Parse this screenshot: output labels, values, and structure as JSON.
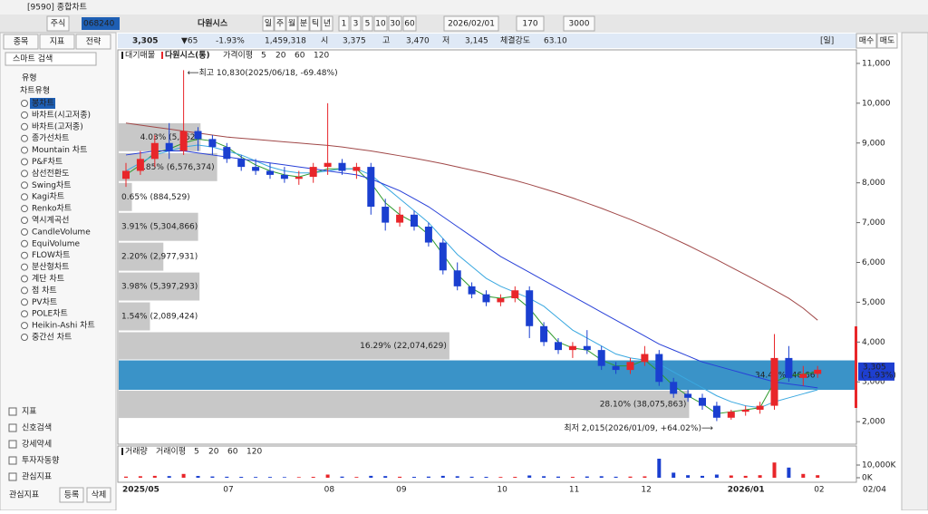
{
  "window": {
    "title": "[9590] 종합차트"
  },
  "toolbar": {
    "market": "주식",
    "code": "068240",
    "name": "다원시스",
    "periods": [
      "일",
      "주",
      "월",
      "분",
      "틱",
      "년"
    ],
    "intervals": [
      "1",
      "3",
      "5",
      "10",
      "30",
      "60"
    ],
    "date": "2026/02/01",
    "count": "170",
    "max": "3000"
  },
  "quote": {
    "price": "3,305",
    "change": "▼65",
    "rate": "-1.93%",
    "volume": "1,459,318",
    "open_label": "시",
    "open": "3,375",
    "high_label": "고",
    "high": "3,470",
    "low_label": "저",
    "low": "3,145",
    "strength_label": "체결강도",
    "strength": "63.10"
  },
  "left_panel": {
    "tabs": [
      "종목",
      "지표",
      "전략"
    ],
    "search": "스마트 검색",
    "tree_root": "유형",
    "tree_group": "차트유형",
    "chart_types": [
      "봉차트",
      "바차트(시고저종)",
      "바차트(고저종)",
      "종가선차트",
      "Mountain 차트",
      "P&F차트",
      "삼선전환도",
      "Swing차트",
      "Kagi차트",
      "Renko차트",
      "역시계곡선",
      "CandleVolume",
      "EquiVolume",
      "FLOW차트",
      "분산형차트",
      "계단 차트",
      "점 차트",
      "PV차트",
      "POLE차트",
      "Heikin-Ashi 차트",
      "중간선 차트"
    ],
    "sections": [
      "지표",
      "신호검색",
      "강세약세",
      "투자자동향",
      "관심지표"
    ],
    "footer": [
      "관심지표",
      "등록",
      "삭제"
    ]
  },
  "chart_panel": {
    "period": "[일]",
    "buy": "매수",
    "sell": "매도",
    "date_end": "02/04"
  },
  "chart_data": [
    {
      "type": "candlestick",
      "legend": [
        "대기매물",
        "다원시스(통)"
      ],
      "ma_label": "가격이평",
      "up_color": "#e8262a",
      "down_color": "#1a3fd0",
      "categories": [
        "2025/05",
        null,
        null,
        null,
        null,
        null,
        null,
        "07",
        null,
        null,
        null,
        null,
        null,
        null,
        "08",
        null,
        null,
        null,
        null,
        "09",
        null,
        null,
        null,
        null,
        null,
        null,
        "10",
        null,
        null,
        null,
        null,
        "11",
        null,
        null,
        null,
        null,
        "12",
        null,
        null,
        null,
        null,
        null,
        "2026/01",
        null,
        null,
        null,
        null,
        null,
        "02"
      ],
      "ohlc": [
        [
          8100,
          8500,
          7900,
          8300
        ],
        [
          8300,
          8800,
          8200,
          8600
        ],
        [
          8600,
          9200,
          8400,
          9000
        ],
        [
          9000,
          9500,
          8600,
          8800
        ],
        [
          8800,
          10830,
          8700,
          9300
        ],
        [
          9300,
          9400,
          8800,
          9100
        ],
        [
          9100,
          9200,
          8700,
          8900
        ],
        [
          8900,
          9000,
          8500,
          8600
        ],
        [
          8600,
          8700,
          8300,
          8400
        ],
        [
          8400,
          8600,
          8200,
          8300
        ],
        [
          8300,
          8500,
          8100,
          8200
        ],
        [
          8200,
          8400,
          8000,
          8100
        ],
        [
          8100,
          8300,
          7950,
          8150
        ],
        [
          8150,
          8500,
          8000,
          8400
        ],
        [
          8400,
          10000,
          8200,
          8500
        ],
        [
          8500,
          8600,
          8200,
          8300
        ],
        [
          8300,
          8500,
          8100,
          8400
        ],
        [
          8400,
          8500,
          7200,
          7400
        ],
        [
          7400,
          7600,
          6800,
          7000
        ],
        [
          7000,
          7400,
          6900,
          7200
        ],
        [
          7200,
          7300,
          6800,
          6900
        ],
        [
          6900,
          7000,
          6400,
          6500
        ],
        [
          6500,
          6600,
          5700,
          5800
        ],
        [
          5800,
          6000,
          5300,
          5400
        ],
        [
          5400,
          5500,
          5100,
          5200
        ],
        [
          5200,
          5300,
          4900,
          5000
        ],
        [
          5000,
          5200,
          4900,
          5100
        ],
        [
          5100,
          5400,
          5000,
          5300
        ],
        [
          5300,
          5400,
          4100,
          4400
        ],
        [
          4400,
          4500,
          3900,
          4000
        ],
        [
          4000,
          4100,
          3700,
          3800
        ],
        [
          3800,
          4000,
          3600,
          3900
        ],
        [
          3900,
          4300,
          3700,
          3800
        ],
        [
          3800,
          3900,
          3300,
          3400
        ],
        [
          3400,
          3500,
          3200,
          3300
        ],
        [
          3300,
          3600,
          3200,
          3500
        ],
        [
          3500,
          3900,
          3400,
          3700
        ],
        [
          3700,
          3800,
          2900,
          3000
        ],
        [
          3000,
          3100,
          2600,
          2700
        ],
        [
          2700,
          2800,
          2500,
          2600
        ],
        [
          2600,
          2700,
          2300,
          2400
        ],
        [
          2400,
          2500,
          2015,
          2100
        ],
        [
          2100,
          2300,
          2050,
          2250
        ],
        [
          2250,
          2400,
          2150,
          2300
        ],
        [
          2300,
          2500,
          2200,
          2400
        ],
        [
          2400,
          4200,
          2300,
          3600
        ],
        [
          3600,
          3900,
          3000,
          3100
        ],
        [
          3100,
          3400,
          2900,
          3200
        ],
        [
          3200,
          3400,
          3100,
          3305
        ]
      ],
      "series": [
        {
          "name": "5",
          "color": "#2e9a2e",
          "values": [
            8200,
            8450,
            8750,
            8850,
            9000,
            9100,
            9050,
            8900,
            8650,
            8450,
            8300,
            8200,
            8150,
            8250,
            8350,
            8350,
            8350,
            8000,
            7500,
            7200,
            7000,
            6700,
            6200,
            5700,
            5350,
            5150,
            5100,
            5150,
            4850,
            4400,
            4000,
            3850,
            3800,
            3550,
            3400,
            3400,
            3550,
            3250,
            2900,
            2650,
            2450,
            2200,
            2250,
            2300,
            2350,
            3000,
            3150,
            3200,
            3250
          ]
        },
        {
          "name": "20",
          "color": "#3aa8e0",
          "values": [
            8300,
            8500,
            8700,
            8800,
            8900,
            8950,
            8900,
            8800,
            8700,
            8550,
            8400,
            8300,
            8250,
            8250,
            8300,
            8350,
            8350,
            8200,
            7900,
            7600,
            7300,
            7000,
            6600,
            6200,
            5900,
            5600,
            5400,
            5250,
            5100,
            4900,
            4600,
            4300,
            4100,
            3900,
            3700,
            3600,
            3550,
            3450,
            3250,
            3050,
            2850,
            2650,
            2500,
            2400,
            2350,
            2500,
            2600,
            2700,
            2800
          ]
        },
        {
          "name": "60",
          "color": "#2840d8",
          "values": [
            8700,
            8750,
            8800,
            8800,
            8800,
            8750,
            8700,
            8650,
            8600,
            8550,
            8500,
            8450,
            8400,
            8350,
            8300,
            8250,
            8200,
            8100,
            7950,
            7800,
            7600,
            7400,
            7150,
            6900,
            6650,
            6400,
            6150,
            5950,
            5750,
            5550,
            5350,
            5150,
            4950,
            4750,
            4550,
            4350,
            4150,
            3950,
            3800,
            3650,
            3500,
            3400,
            3300,
            3200,
            3100,
            3000,
            2950,
            2900,
            2850
          ]
        },
        {
          "name": "120",
          "color": "#a04848",
          "values": [
            9500,
            9450,
            9400,
            9350,
            9300,
            9250,
            9200,
            9150,
            9120,
            9090,
            9060,
            9030,
            9000,
            8970,
            8940,
            8900,
            8850,
            8800,
            8740,
            8680,
            8620,
            8550,
            8480,
            8400,
            8320,
            8240,
            8150,
            8060,
            7960,
            7850,
            7740,
            7620,
            7490,
            7360,
            7220,
            7080,
            6930,
            6770,
            6600,
            6430,
            6250,
            6070,
            5880,
            5690,
            5500,
            5300,
            5100,
            4850,
            4550
          ]
        }
      ],
      "profile": {
        "edges": [
          9520,
          8770,
          8020,
          7270,
          6520,
          5770,
          5020,
          4270,
          3540,
          2800,
          2070
        ],
        "values": [
          4.03,
          4.85,
          0.65,
          3.91,
          2.2,
          3.98,
          1.54,
          16.29,
          34.44,
          28.1
        ],
        "value_labels": [
          "4.03% (5,462,",
          "4.85% (6,576,374)",
          "0.65% (884,529)",
          "3.91% (5,304,866)",
          "2.20% (2,977,931)",
          "3.98% (5,397,293)",
          "1.54% (2,089,424)",
          "16.29% (22,074,629)",
          "34.44% (46,66",
          "28.10% (38,075,863)"
        ],
        "color": "#c8c8c8",
        "highlight": 8,
        "highlight_color": "#3a93c8"
      },
      "annotations": [
        "⟵최고 10,830(2025/06/18, -69.48%)",
        "최저 2,015(2026/01/09, +64.02%)⟶"
      ],
      "last_label": "3,305",
      "last_rate": "(-1.93%)",
      "ylim": [
        1480,
        11340
      ],
      "yticks": [
        {
          "value": 2000,
          "label": "2,000"
        },
        {
          "value": 3000,
          "label": "3,000"
        },
        {
          "value": 4000,
          "label": "4,000"
        },
        {
          "value": 5000,
          "label": "5,000"
        },
        {
          "value": 6000,
          "label": "6,000"
        },
        {
          "value": 7000,
          "label": "7,000"
        },
        {
          "value": 8000,
          "label": "8,000"
        },
        {
          "value": 9000,
          "label": "9,000"
        },
        {
          "value": 10000,
          "label": "10,000"
        },
        {
          "value": 11000,
          "label": "11,000"
        }
      ]
    },
    {
      "type": "bar",
      "title": "거래량",
      "ma_label": "거래이평",
      "ma_periods": [
        "5",
        "20",
        "60",
        "120"
      ],
      "ma_colors": [
        "#2e9a2e",
        "#3aa8e0",
        "#2840d8",
        "#c03030"
      ],
      "values": [
        900,
        1200,
        1500,
        1300,
        3000,
        1400,
        1000,
        800,
        700,
        600,
        600,
        500,
        500,
        700,
        2500,
        900,
        600,
        1500,
        1300,
        800,
        700,
        900,
        1500,
        1200,
        800,
        700,
        600,
        700,
        1800,
        1200,
        900,
        700,
        1000,
        1200,
        800,
        900,
        1100,
        15000,
        4000,
        2000,
        1500,
        2500,
        1800,
        1500,
        2000,
        12000,
        8000,
        3000,
        2000
      ],
      "ylim": [
        0,
        20000
      ],
      "yticks": [
        {
          "value": 0,
          "label": "0K"
        },
        {
          "value": 10000,
          "label": "10,000K"
        }
      ]
    }
  ]
}
